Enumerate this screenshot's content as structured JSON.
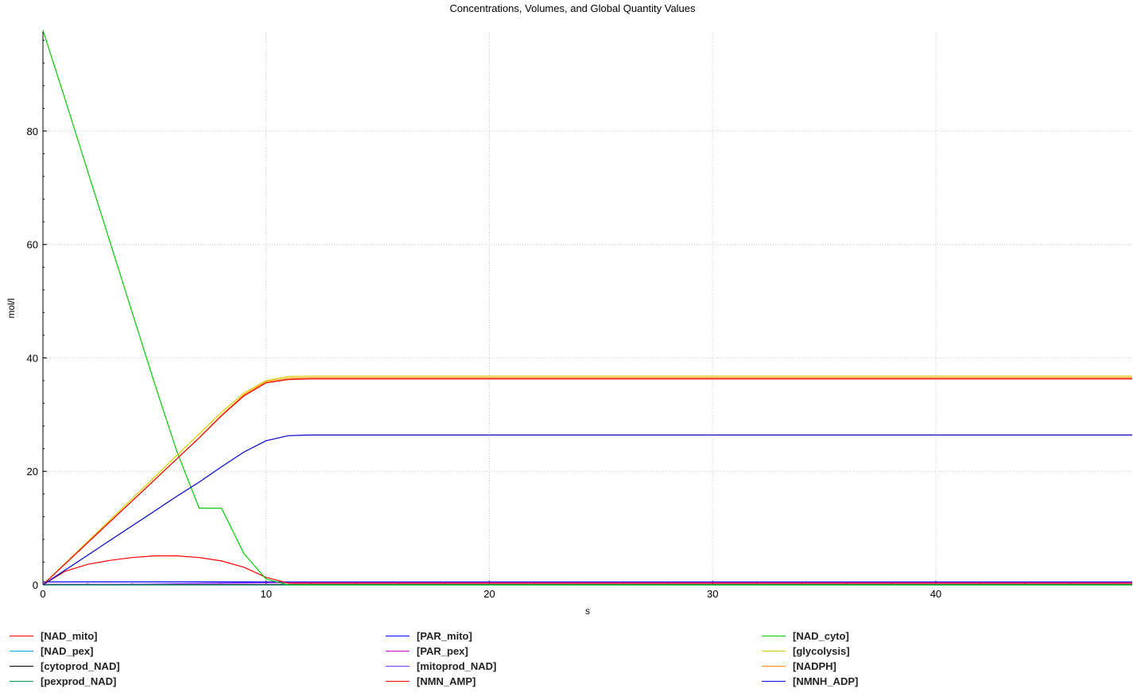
{
  "chart_data": {
    "type": "line",
    "title": "Concentrations, Volumes, and Global Quantity Values",
    "xlabel": "s",
    "ylabel": "mol/l",
    "xlim": [
      0,
      48.8
    ],
    "ylim": [
      0,
      97.5
    ],
    "xticks": [
      0,
      10,
      20,
      30,
      40
    ],
    "yticks": [
      0,
      20,
      40,
      60,
      80
    ],
    "grid": true,
    "legend_position": "bottom",
    "series": [
      {
        "name": "[NAD_mito]",
        "color": "#ff0000",
        "x": [
          0,
          1,
          2,
          3,
          4,
          5,
          6,
          7,
          8,
          9,
          10,
          11,
          12,
          48.8
        ],
        "y": [
          0,
          2.4,
          3.6,
          4.3,
          4.8,
          5.1,
          5.1,
          4.8,
          4.2,
          3.1,
          1.3,
          0.3,
          0.3,
          0.3
        ]
      },
      {
        "name": "[PAR_mito]",
        "color": "#0000ff",
        "x": [
          0,
          48.8
        ],
        "y": [
          0.5,
          0.5
        ]
      },
      {
        "name": "[NAD_cyto]",
        "color": "#00cc00",
        "x": [
          0,
          1,
          2,
          3,
          4,
          5,
          6,
          7,
          8,
          9,
          10,
          11,
          12,
          48.8
        ],
        "y": [
          98,
          85.5,
          73,
          60.5,
          48,
          35.5,
          23.5,
          13.5,
          13.5,
          5.5,
          1,
          0,
          0,
          0
        ]
      },
      {
        "name": "[NAD_pex]",
        "color": "#00aadd",
        "x": [
          0,
          48.8
        ],
        "y": [
          0,
          0
        ]
      },
      {
        "name": "[PAR_pex]",
        "color": "#dd00dd",
        "x": [
          0,
          48.8
        ],
        "y": [
          0.1,
          0.1
        ]
      },
      {
        "name": "[glycolysis]",
        "color": "#ddcc00",
        "x": [
          0,
          1,
          2,
          3,
          4,
          5,
          6,
          7,
          8,
          9,
          10,
          11,
          12,
          48.8
        ],
        "y": [
          0,
          3.8,
          7.6,
          11.4,
          15.2,
          19,
          22.8,
          26.6,
          30.4,
          33.8,
          36,
          36.7,
          36.8,
          36.8
        ]
      },
      {
        "name": "[cytoprod_NAD]",
        "color": "#000000",
        "x": [
          0,
          48.8
        ],
        "y": [
          0,
          0
        ]
      },
      {
        "name": "[mitoprod_NAD]",
        "color": "#8833ff",
        "x": [
          0,
          4,
          8,
          11,
          12,
          48.8
        ],
        "y": [
          0,
          0.1,
          0.3,
          0.4,
          0.4,
          0.4
        ]
      },
      {
        "name": "[NADPH]",
        "color": "#ff8800",
        "x": [
          0,
          1,
          2,
          3,
          4,
          5,
          6,
          7,
          8,
          9,
          10,
          11,
          12,
          48.8
        ],
        "y": [
          0,
          3.7,
          7.4,
          11.1,
          14.8,
          18.5,
          22.2,
          25.9,
          29.9,
          33.5,
          35.8,
          36.4,
          36.5,
          36.5
        ]
      },
      {
        "name": "[pexprod_NAD]",
        "color": "#009944",
        "x": [
          0,
          48.8
        ],
        "y": [
          0,
          0
        ]
      },
      {
        "name": "[NMN_AMP]",
        "color": "#ee0000",
        "x": [
          0,
          1,
          2,
          3,
          4,
          5,
          6,
          7,
          8,
          9,
          10,
          11,
          12,
          48.8
        ],
        "y": [
          0,
          3.7,
          7.4,
          11.1,
          14.8,
          18.5,
          22.2,
          25.9,
          29.8,
          33.3,
          35.6,
          36.2,
          36.3,
          36.3
        ]
      },
      {
        "name": "[NMNH_ADP]",
        "color": "#0000cc",
        "x": [
          0,
          1,
          2,
          3,
          4,
          5,
          6,
          7,
          8,
          9,
          10,
          11,
          12,
          48.8
        ],
        "y": [
          0,
          2.6,
          5.2,
          7.8,
          10.4,
          13,
          15.6,
          18.1,
          20.8,
          23.4,
          25.4,
          26.3,
          26.4,
          26.4
        ]
      }
    ]
  },
  "legend": {
    "columns": [
      [
        "[NAD_mito]",
        "[NAD_pex]",
        "[cytoprod_NAD]",
        "[pexprod_NAD]"
      ],
      [
        "[PAR_mito]",
        "[PAR_pex]",
        "[mitoprod_NAD]",
        "[NMN_AMP]"
      ],
      [
        "[NAD_cyto]",
        "[glycolysis]",
        "[NADPH]",
        "[NMNH_ADP]"
      ]
    ]
  }
}
